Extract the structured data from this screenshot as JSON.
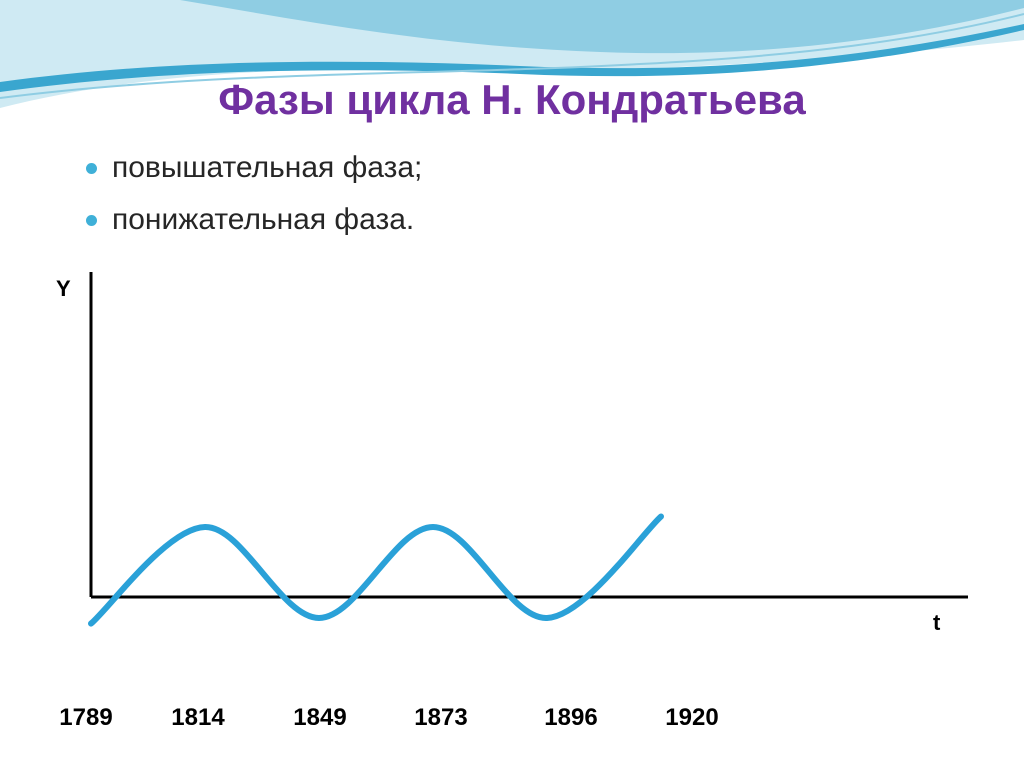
{
  "slide": {
    "title": "Фазы цикла Н. Кондратьева",
    "bullets": [
      {
        "label": "повышательная фаза;"
      },
      {
        "label": "понижательная фаза."
      }
    ]
  },
  "colors": {
    "title": "#7030a0",
    "bullet_dot": "#3fb0d8",
    "curve": "#2aa1d8",
    "axis": "#000000",
    "wave_light": "#cfeaf3",
    "wave_mid": "#8fcde3",
    "wave_dark": "#3aa6cf"
  },
  "chart_data": {
    "type": "line",
    "title": "",
    "ylabel": "Y",
    "xlabel": "t",
    "x_tick_labels": [
      "1789",
      "1814",
      "1849",
      "1873",
      "1896",
      "1920"
    ],
    "series": [
      {
        "values_description_free": true,
        "points": [
          {
            "x": 0.0,
            "y": -0.38
          },
          {
            "x": 0.5,
            "y": 1.0
          },
          {
            "x": 1.0,
            "y": -0.3
          },
          {
            "x": 1.5,
            "y": 1.0
          },
          {
            "x": 2.0,
            "y": -0.3
          },
          {
            "x": 2.5,
            "y": 1.15
          }
        ]
      }
    ],
    "xlim": [
      0,
      3.5
    ],
    "ylim": [
      -0.5,
      4.5
    ],
    "grid": false,
    "legend": "none"
  }
}
